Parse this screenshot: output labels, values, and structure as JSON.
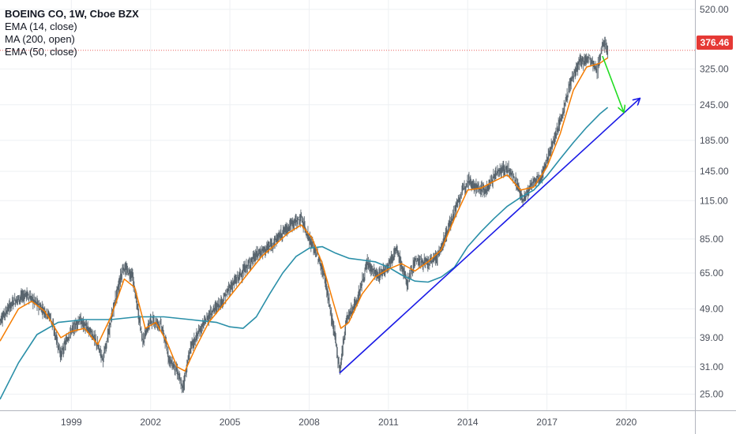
{
  "legend": {
    "title": "BOEING CO, 1W, Cboe BZX",
    "ind1": "EMA (14, close)",
    "ind2": "MA (200, open)",
    "ind3": "EMA (50, close)"
  },
  "last_price": "376.46",
  "colors": {
    "ema14": "#f57c00",
    "ma200": "#2a8fa8",
    "ema50": "#2a8fa8",
    "trendline": "#1a1ae6",
    "arrow": "#22dd22",
    "candle": "#3c4a55",
    "price_line": "#e53935",
    "grid": "#eef0f3"
  },
  "chart_data": {
    "type": "line",
    "title": "BOEING CO, 1W, Cboe BZX",
    "y_scale": "log",
    "ylim": [
      22,
      560
    ],
    "xlim": [
      1996.3,
      2022.6
    ],
    "y_ticks": [
      520,
      325,
      245,
      185,
      145,
      115,
      85,
      65,
      49,
      39,
      31,
      25
    ],
    "y_tick_labels": [
      "520.00",
      "325.00",
      "245.00",
      "185.00",
      "145.00",
      "115.00",
      "85.00",
      "65.00",
      "49.00",
      "39.00",
      "31.00",
      "25.00"
    ],
    "x_ticks": [
      1999,
      2002,
      2005,
      2008,
      2011,
      2014,
      2017,
      2020
    ],
    "x_tick_labels": [
      "1999",
      "2002",
      "2005",
      "2008",
      "2011",
      "2014",
      "2017",
      "2020"
    ],
    "last_price": 376.46,
    "grid": true,
    "price": [
      [
        1996.3,
        45
      ],
      [
        1996.8,
        52
      ],
      [
        1997.3,
        55
      ],
      [
        1997.8,
        50
      ],
      [
        1998.2,
        46
      ],
      [
        1998.6,
        34
      ],
      [
        1998.9,
        40
      ],
      [
        1999.3,
        45
      ],
      [
        1999.8,
        40
      ],
      [
        2000.2,
        33
      ],
      [
        2000.6,
        50
      ],
      [
        2000.95,
        68
      ],
      [
        2001.3,
        64
      ],
      [
        2001.7,
        38
      ],
      [
        2002.0,
        45
      ],
      [
        2002.4,
        43
      ],
      [
        2002.7,
        33
      ],
      [
        2003.0,
        30
      ],
      [
        2003.2,
        26
      ],
      [
        2003.5,
        36
      ],
      [
        2003.9,
        42
      ],
      [
        2004.3,
        48
      ],
      [
        2004.7,
        52
      ],
      [
        2005.0,
        58
      ],
      [
        2005.5,
        66
      ],
      [
        2006.0,
        75
      ],
      [
        2006.5,
        80
      ],
      [
        2007.0,
        90
      ],
      [
        2007.4,
        97
      ],
      [
        2007.7,
        100
      ],
      [
        2008.0,
        85
      ],
      [
        2008.3,
        75
      ],
      [
        2008.6,
        62
      ],
      [
        2008.8,
        48
      ],
      [
        2009.0,
        38
      ],
      [
        2009.15,
        30
      ],
      [
        2009.4,
        45
      ],
      [
        2009.8,
        52
      ],
      [
        2010.2,
        70
      ],
      [
        2010.6,
        63
      ],
      [
        2011.0,
        70
      ],
      [
        2011.3,
        78
      ],
      [
        2011.7,
        60
      ],
      [
        2012.0,
        72
      ],
      [
        2012.5,
        70
      ],
      [
        2012.9,
        75
      ],
      [
        2013.3,
        95
      ],
      [
        2013.7,
        118
      ],
      [
        2014.0,
        137
      ],
      [
        2014.3,
        128
      ],
      [
        2014.7,
        125
      ],
      [
        2015.1,
        145
      ],
      [
        2015.5,
        148
      ],
      [
        2015.8,
        135
      ],
      [
        2016.1,
        115
      ],
      [
        2016.4,
        130
      ],
      [
        2016.8,
        140
      ],
      [
        2017.1,
        170
      ],
      [
        2017.5,
        215
      ],
      [
        2017.9,
        295
      ],
      [
        2018.2,
        340
      ],
      [
        2018.6,
        355
      ],
      [
        2018.9,
        320
      ],
      [
        2019.1,
        400
      ],
      [
        2019.3,
        376.46
      ]
    ],
    "series": [
      {
        "name": "EMA (14, close)",
        "points": [
          [
            1996.3,
            38
          ],
          [
            1997.0,
            49
          ],
          [
            1997.5,
            52
          ],
          [
            1998.0,
            48
          ],
          [
            1998.6,
            39
          ],
          [
            1999.0,
            41
          ],
          [
            1999.5,
            42
          ],
          [
            2000.0,
            37
          ],
          [
            2000.5,
            46
          ],
          [
            2001.0,
            62
          ],
          [
            2001.4,
            58
          ],
          [
            2001.8,
            42
          ],
          [
            2002.2,
            44
          ],
          [
            2002.6,
            38
          ],
          [
            2003.0,
            31
          ],
          [
            2003.3,
            30
          ],
          [
            2003.7,
            36
          ],
          [
            2004.2,
            44
          ],
          [
            2004.7,
            50
          ],
          [
            2005.2,
            57
          ],
          [
            2005.7,
            65
          ],
          [
            2006.2,
            74
          ],
          [
            2006.7,
            81
          ],
          [
            2007.2,
            89
          ],
          [
            2007.7,
            95
          ],
          [
            2008.1,
            86
          ],
          [
            2008.5,
            70
          ],
          [
            2008.9,
            52
          ],
          [
            2009.2,
            42
          ],
          [
            2009.5,
            44
          ],
          [
            2010.0,
            55
          ],
          [
            2010.5,
            63
          ],
          [
            2011.0,
            67
          ],
          [
            2011.5,
            70
          ],
          [
            2012.0,
            66
          ],
          [
            2012.5,
            71
          ],
          [
            2013.0,
            78
          ],
          [
            2013.5,
            100
          ],
          [
            2014.0,
            125
          ],
          [
            2014.5,
            127
          ],
          [
            2015.0,
            134
          ],
          [
            2015.5,
            141
          ],
          [
            2016.0,
            125
          ],
          [
            2016.5,
            128
          ],
          [
            2017.0,
            150
          ],
          [
            2017.5,
            195
          ],
          [
            2018.0,
            275
          ],
          [
            2018.5,
            330
          ],
          [
            2019.0,
            340
          ],
          [
            2019.3,
            355
          ]
        ]
      },
      {
        "name": "MA (200, open)",
        "points": [
          [
            1996.3,
            24
          ],
          [
            1997.0,
            32
          ],
          [
            1997.7,
            40
          ],
          [
            1998.5,
            44
          ],
          [
            1999.5,
            45
          ],
          [
            2000.5,
            45
          ],
          [
            2001.5,
            46
          ],
          [
            2002.5,
            46
          ],
          [
            2003.5,
            45
          ],
          [
            2004.5,
            44
          ],
          [
            2005.0,
            42.5
          ],
          [
            2005.5,
            42
          ],
          [
            2006.0,
            46
          ],
          [
            2006.5,
            55
          ],
          [
            2007.0,
            65
          ],
          [
            2007.5,
            74
          ],
          [
            2008.0,
            79
          ],
          [
            2008.5,
            80
          ],
          [
            2009.0,
            76
          ],
          [
            2009.5,
            73
          ],
          [
            2010.0,
            72
          ],
          [
            2010.5,
            71
          ],
          [
            2011.0,
            68
          ],
          [
            2011.5,
            64
          ],
          [
            2012.0,
            61
          ],
          [
            2012.5,
            60.5
          ],
          [
            2013.0,
            63
          ],
          [
            2013.5,
            68
          ],
          [
            2014.0,
            80
          ],
          [
            2014.5,
            90
          ],
          [
            2015.0,
            100
          ],
          [
            2015.5,
            110
          ],
          [
            2016.0,
            118
          ],
          [
            2016.5,
            125
          ],
          [
            2017.0,
            140
          ],
          [
            2017.5,
            160
          ],
          [
            2018.0,
            182
          ],
          [
            2018.5,
            205
          ],
          [
            2019.0,
            228
          ],
          [
            2019.3,
            240
          ]
        ]
      }
    ],
    "annotations": [
      {
        "type": "trendline",
        "from": [
          2009.15,
          29.5
        ],
        "to": [
          2020.5,
          257
        ]
      },
      {
        "type": "arrow",
        "from": [
          2019.1,
          360
        ],
        "to": [
          2019.9,
          232
        ]
      }
    ]
  }
}
